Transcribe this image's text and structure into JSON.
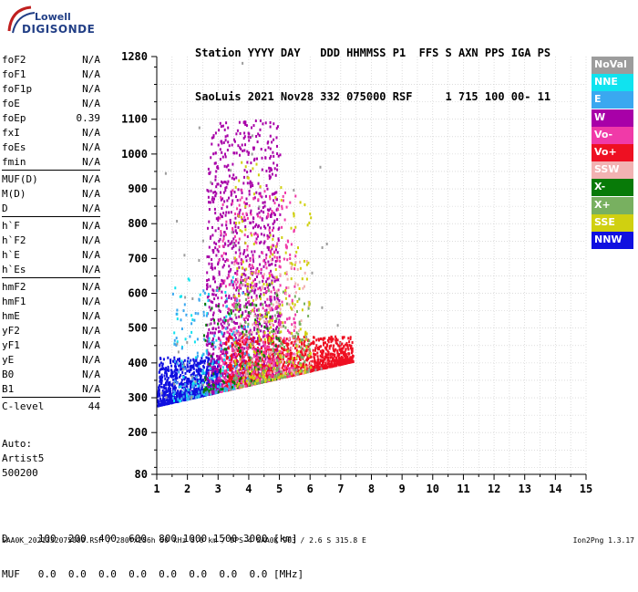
{
  "logo": {
    "line1": "Lowell",
    "line2": "DIGISONDE"
  },
  "header": {
    "line1": "Station YYYY DAY   DDD HHMMSS P1  FFS S AXN PPS IGA PS",
    "line2": "SaoLuis 2021 Nov28 332 075000 RSF     1 715 100 00- 11"
  },
  "params": [
    {
      "group": [
        {
          "k": "foF2",
          "v": "N/A"
        },
        {
          "k": "foF1",
          "v": "N/A"
        },
        {
          "k": "foF1p",
          "v": "N/A"
        },
        {
          "k": "foE",
          "v": "N/A"
        },
        {
          "k": "foEp",
          "v": "0.39"
        },
        {
          "k": "fxI",
          "v": "N/A"
        },
        {
          "k": "foEs",
          "v": "N/A"
        },
        {
          "k": "fmin",
          "v": "N/A"
        }
      ]
    },
    {
      "group": [
        {
          "k": "MUF(D)",
          "v": "N/A"
        },
        {
          "k": "M(D)",
          "v": "N/A"
        },
        {
          "k": "D",
          "v": "N/A"
        }
      ]
    },
    {
      "group": [
        {
          "k": "h`F",
          "v": "N/A"
        },
        {
          "k": "h`F2",
          "v": "N/A"
        },
        {
          "k": "h`E",
          "v": "N/A"
        },
        {
          "k": "h`Es",
          "v": "N/A"
        }
      ]
    },
    {
      "group": [
        {
          "k": "hmF2",
          "v": "N/A"
        },
        {
          "k": "hmF1",
          "v": "N/A"
        },
        {
          "k": "hmE",
          "v": "N/A"
        },
        {
          "k": "yF2",
          "v": "N/A"
        },
        {
          "k": "yF1",
          "v": "N/A"
        },
        {
          "k": "yE",
          "v": "N/A"
        },
        {
          "k": "B0",
          "v": "N/A"
        },
        {
          "k": "B1",
          "v": "N/A"
        }
      ]
    },
    {
      "group": [
        {
          "k": "C-level",
          "v": "44"
        }
      ]
    }
  ],
  "auto": {
    "l1": "Auto:",
    "l2": "Artist5",
    "l3": "500200"
  },
  "legend": [
    {
      "name": "NoVal",
      "color": "#9c9c9c"
    },
    {
      "name": "NNE",
      "color": "#10e3ef"
    },
    {
      "name": "E",
      "color": "#3aa8f0"
    },
    {
      "name": "W",
      "color": "#a800a8"
    },
    {
      "name": "Vo-",
      "color": "#f03aa8"
    },
    {
      "name": "Vo+",
      "color": "#ee1022"
    },
    {
      "name": "SSW",
      "color": "#f2b2b2"
    },
    {
      "name": "X-",
      "color": "#087a08"
    },
    {
      "name": "X+",
      "color": "#78b060"
    },
    {
      "name": "SSE",
      "color": "#d0d010"
    },
    {
      "name": "NNW",
      "color": "#1010e0"
    }
  ],
  "bottom": {
    "line1": "D     100  200  400  600  800 1000 1500 3000 [km]",
    "line2": "MUF   0.0  0.0  0.0  0.0  0.0  0.0  0.0  0.0 [MHz]"
  },
  "footer": "SAA0K_2021332075000.RSF / 280fx256h 50 kHz 5.0 km / DPS-4 SAA0K 903 / 2.6 S 315.8 E",
  "version": "Ion2Png 1.3.17",
  "chart_data": {
    "type": "heatmap",
    "xlabel": "",
    "ylabel": "",
    "xlim": [
      1,
      15
    ],
    "ylim": [
      80,
      1280
    ],
    "x_ticks": [
      1,
      2,
      3,
      4,
      5,
      6,
      7,
      8,
      9,
      10,
      11,
      12,
      13,
      14,
      15
    ],
    "y_ticks": [
      80,
      200,
      300,
      400,
      500,
      600,
      700,
      800,
      900,
      1000,
      1100,
      1280
    ],
    "grid": true,
    "clusters": [
      {
        "name": "NNW",
        "x": [
          1.0,
          3.0
        ],
        "y": [
          240,
          420
        ],
        "n": 900
      },
      {
        "name": "W",
        "x": [
          2.6,
          5.0
        ],
        "y": [
          300,
          1100
        ],
        "n": 1400
      },
      {
        "name": "Vo+",
        "x": [
          3.2,
          7.4
        ],
        "y": [
          310,
          480
        ],
        "n": 1300
      },
      {
        "name": "Vo-",
        "x": [
          3.0,
          5.5
        ],
        "y": [
          320,
          900
        ],
        "n": 500
      },
      {
        "name": "NNE",
        "x": [
          1.5,
          3.5
        ],
        "y": [
          250,
          650
        ],
        "n": 90
      },
      {
        "name": "E",
        "x": [
          1.5,
          4.0
        ],
        "y": [
          300,
          620
        ],
        "n": 140
      },
      {
        "name": "SSW",
        "x": [
          3.5,
          6.0
        ],
        "y": [
          330,
          700
        ],
        "n": 160
      },
      {
        "name": "X-",
        "x": [
          2.5,
          5.0
        ],
        "y": [
          320,
          650
        ],
        "n": 110
      },
      {
        "name": "X+",
        "x": [
          3.5,
          6.0
        ],
        "y": [
          320,
          620
        ],
        "n": 150
      },
      {
        "name": "SSE",
        "x": [
          3.5,
          6.0
        ],
        "y": [
          330,
          1000
        ],
        "n": 220
      },
      {
        "name": "NoVal",
        "x": [
          1.0,
          7.0
        ],
        "y": [
          80,
          1280
        ],
        "n": 60
      }
    ]
  }
}
